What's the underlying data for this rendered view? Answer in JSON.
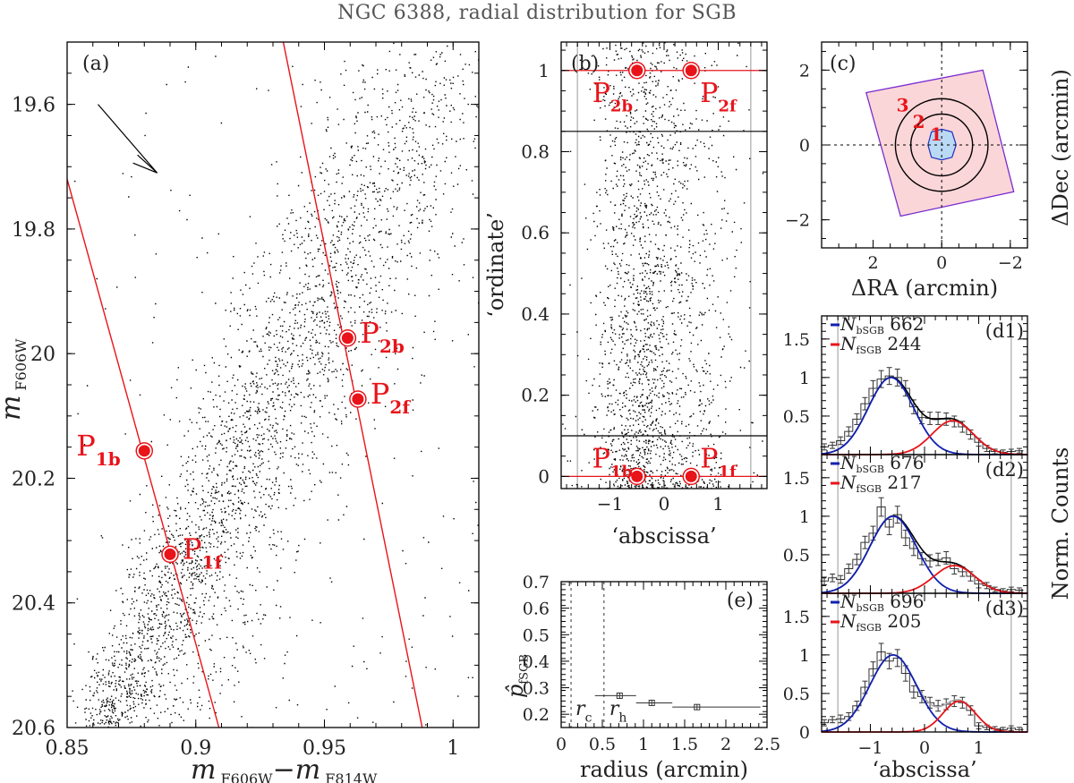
{
  "title": "NGC 6388, radial distribution for SGB",
  "colors": {
    "red": "#e8141a",
    "blue": "#1020b0",
    "black": "#000000",
    "grey": "#b0b0b0",
    "footprint_fill": "#fbd6d8",
    "footprint_edge": "#7a2bd0",
    "core_fill": "#b9d9f5",
    "core_edge": "#2030c0"
  },
  "chart_data": [
    {
      "panel": "a",
      "type": "scatter",
      "label": "(a)",
      "xlabel_main": "m",
      "xlabel_sub1": "F606W",
      "xlabel_mid": "−m",
      "xlabel_sub2": "F814W",
      "ylabel_main": "m",
      "ylabel_sub": "F606W",
      "xlim": [
        0.85,
        1.01
      ],
      "ylim": [
        20.6,
        19.5
      ],
      "x_ticks": [
        "0.85",
        "0.9",
        "0.95",
        "1"
      ],
      "x_tick_values": [
        0.85,
        0.9,
        0.95,
        1.0
      ],
      "y_ticks": [
        "19.6",
        "19.8",
        "20",
        "20.2",
        "20.4",
        "20.6"
      ],
      "y_tick_values": [
        19.6,
        19.8,
        20.0,
        20.2,
        20.4,
        20.6
      ],
      "lines": [
        {
          "name": "line-1",
          "x": [
            0.85,
            0.909
          ],
          "y": [
            19.72,
            20.6
          ]
        },
        {
          "name": "line-2",
          "x": [
            0.934,
            0.988
          ],
          "y": [
            19.5,
            20.6
          ]
        }
      ],
      "points": [
        {
          "label": "P",
          "sub": "1b",
          "x": 0.88,
          "y": 20.156
        },
        {
          "label": "P",
          "sub": "1f",
          "x": 0.89,
          "y": 20.322
        },
        {
          "label": "P",
          "sub": "2b",
          "x": 0.959,
          "y": 19.975
        },
        {
          "label": "P",
          "sub": "2f",
          "x": 0.963,
          "y": 20.073
        }
      ],
      "reddening_arrow": {
        "from": [
          0.862,
          19.6
        ],
        "to": [
          0.885,
          19.71
        ]
      },
      "stars": "dense CMD of SGB: blue (bright) SGB sequence near color 0.86-0.88 at faint mags, spreading to 0.9-1.0 at brighter mags"
    },
    {
      "panel": "b",
      "type": "scatter",
      "label": "(b)",
      "xlabel": "‘abscissa’",
      "ylabel": "‘ordinate’",
      "xlim": [
        -1.9,
        1.9
      ],
      "ylim": [
        -0.03,
        1.07
      ],
      "x_ticks": [
        "−1",
        "0",
        "1"
      ],
      "x_tick_values": [
        -1,
        0,
        1
      ],
      "y_ticks": [
        "0",
        "0.2",
        "0.4",
        "0.6",
        "0.8",
        "1"
      ],
      "y_tick_values": [
        0,
        0.2,
        0.4,
        0.6,
        0.8,
        1
      ],
      "hlines_red": [
        0,
        1
      ],
      "hlines_black": [
        0.1,
        0.85
      ],
      "vlines_grey": [
        -1.6,
        1.6
      ],
      "points": [
        {
          "label": "P",
          "sub": "1b",
          "x": -0.5,
          "y": 0
        },
        {
          "label": "P",
          "sub": "1f",
          "x": 0.5,
          "y": 0
        },
        {
          "label": "P",
          "sub": "2b",
          "x": -0.5,
          "y": 1
        },
        {
          "label": "P",
          "sub": "2f",
          "x": 0.5,
          "y": 1
        }
      ]
    },
    {
      "panel": "c",
      "type": "diagram",
      "label": "(c)",
      "xlabel": "ΔRA (arcmin)",
      "ylabel": "ΔDec (arcmin)",
      "xlim": [
        3.5,
        -2.5
      ],
      "ylim": [
        -2.75,
        2.75
      ],
      "x_ticks": [
        "2",
        "0",
        "−2"
      ],
      "x_tick_values": [
        2,
        0,
        -2
      ],
      "y_ticks": [
        "−2",
        "0",
        "2"
      ],
      "y_tick_values": [
        -2,
        0,
        2
      ],
      "footprint": [
        [
          2.2,
          1.4
        ],
        [
          -1.2,
          2.0
        ],
        [
          -2.1,
          -1.25
        ],
        [
          1.2,
          -1.9
        ]
      ],
      "annuli_radii": [
        0.4,
        0.9,
        1.35
      ],
      "region_labels": [
        "1",
        "2",
        "3"
      ]
    },
    {
      "panel": "d1",
      "type": "histogram",
      "label": "(d1)",
      "ylabel": "Norm. Counts",
      "xlim": [
        -1.9,
        1.9
      ],
      "ylim": [
        0,
        1.8
      ],
      "y_ticks": [
        "0.5",
        "1",
        "1.5"
      ],
      "y_tick_values": [
        0.5,
        1.0,
        1.5
      ],
      "legend": [
        {
          "symbol": "N",
          "sub": "bSGB",
          "value": "662",
          "color": "blue"
        },
        {
          "symbol": "N",
          "sub": "fSGB",
          "value": "244",
          "color": "red"
        }
      ],
      "gauss_b": {
        "mu": -0.62,
        "sigma": 0.42,
        "amp": 1.0
      },
      "gauss_f": {
        "mu": 0.52,
        "sigma": 0.38,
        "amp": 0.44
      },
      "bins_x": [
        -1.85,
        -1.7,
        -1.55,
        -1.4,
        -1.25,
        -1.1,
        -0.95,
        -0.8,
        -0.65,
        -0.5,
        -0.35,
        -0.2,
        -0.05,
        0.1,
        0.25,
        0.4,
        0.55,
        0.7,
        0.85,
        1.0,
        1.15,
        1.3,
        1.45,
        1.6,
        1.75
      ],
      "bins_y": [
        0.1,
        0.12,
        0.18,
        0.3,
        0.46,
        0.66,
        0.86,
        0.98,
        1.02,
        1.0,
        0.86,
        0.62,
        0.48,
        0.47,
        0.47,
        0.46,
        0.43,
        0.36,
        0.26,
        0.16,
        0.08,
        0.04,
        0.03,
        0.04,
        0.05
      ],
      "bins_err": [
        0.04,
        0.04,
        0.05,
        0.06,
        0.07,
        0.08,
        0.1,
        0.11,
        0.11,
        0.11,
        0.1,
        0.09,
        0.08,
        0.08,
        0.08,
        0.08,
        0.07,
        0.07,
        0.06,
        0.05,
        0.04,
        0.03,
        0.03,
        0.03,
        0.03
      ]
    },
    {
      "panel": "d2",
      "type": "histogram",
      "label": "(d2)",
      "xlim": [
        -1.9,
        1.9
      ],
      "ylim": [
        0,
        1.8
      ],
      "y_ticks": [
        "0.5",
        "1",
        "1.5"
      ],
      "y_tick_values": [
        0.5,
        1.0,
        1.5
      ],
      "legend": [
        {
          "symbol": "N",
          "sub": "bSGB",
          "value": "676",
          "color": "blue"
        },
        {
          "symbol": "N",
          "sub": "fSGB",
          "value": "217",
          "color": "red"
        }
      ],
      "gauss_b": {
        "mu": -0.58,
        "sigma": 0.43,
        "amp": 1.0
      },
      "gauss_f": {
        "mu": 0.55,
        "sigma": 0.38,
        "amp": 0.36
      },
      "bins_x": [
        -1.85,
        -1.7,
        -1.55,
        -1.4,
        -1.25,
        -1.1,
        -0.95,
        -0.8,
        -0.65,
        -0.5,
        -0.35,
        -0.2,
        -0.05,
        0.1,
        0.25,
        0.4,
        0.55,
        0.7,
        0.85,
        1.0,
        1.15,
        1.3,
        1.45,
        1.6,
        1.75
      ],
      "bins_y": [
        0.16,
        0.2,
        0.18,
        0.32,
        0.44,
        0.66,
        0.78,
        1.12,
        0.86,
        1.02,
        0.72,
        0.58,
        0.45,
        0.42,
        0.44,
        0.46,
        0.32,
        0.28,
        0.22,
        0.12,
        0.1,
        0.05,
        0.03,
        0.05,
        0.04
      ],
      "bins_err": [
        0.05,
        0.05,
        0.05,
        0.06,
        0.07,
        0.08,
        0.09,
        0.12,
        0.1,
        0.11,
        0.1,
        0.09,
        0.08,
        0.08,
        0.08,
        0.08,
        0.07,
        0.06,
        0.06,
        0.05,
        0.04,
        0.03,
        0.03,
        0.03,
        0.03
      ]
    },
    {
      "panel": "d3",
      "type": "histogram",
      "label": "(d3)",
      "xlabel": "‘abscissa’",
      "xlim": [
        -1.9,
        1.9
      ],
      "ylim": [
        0,
        1.8
      ],
      "x_ticks": [
        "−1",
        "0",
        "1"
      ],
      "x_tick_values": [
        -1,
        0,
        1
      ],
      "y_ticks": [
        "0",
        "0.5",
        "1",
        "1.5"
      ],
      "y_tick_values": [
        0,
        0.5,
        1.0,
        1.5
      ],
      "legend": [
        {
          "symbol": "N",
          "sub": "bSGB",
          "value": "696",
          "color": "blue"
        },
        {
          "symbol": "N",
          "sub": "fSGB",
          "value": "205",
          "color": "red"
        }
      ],
      "gauss_b": {
        "mu": -0.58,
        "sigma": 0.43,
        "amp": 1.0
      },
      "gauss_f": {
        "mu": 0.64,
        "sigma": 0.3,
        "amp": 0.4
      },
      "bins_x": [
        -1.85,
        -1.7,
        -1.55,
        -1.4,
        -1.25,
        -1.1,
        -0.95,
        -0.8,
        -0.65,
        -0.5,
        -0.35,
        -0.2,
        -0.05,
        0.1,
        0.25,
        0.4,
        0.55,
        0.7,
        0.85,
        1.0,
        1.15,
        1.3,
        1.45,
        1.6,
        1.75
      ],
      "bins_y": [
        0.12,
        0.16,
        0.17,
        0.2,
        0.34,
        0.58,
        0.82,
        1.04,
        0.92,
        0.96,
        0.76,
        0.52,
        0.46,
        0.38,
        0.34,
        0.36,
        0.4,
        0.38,
        0.28,
        0.08,
        0.06,
        0.04,
        0.03,
        0.05,
        0.03
      ],
      "bins_err": [
        0.04,
        0.04,
        0.05,
        0.05,
        0.06,
        0.08,
        0.09,
        0.11,
        0.1,
        0.11,
        0.1,
        0.08,
        0.08,
        0.07,
        0.07,
        0.07,
        0.07,
        0.07,
        0.06,
        0.04,
        0.03,
        0.03,
        0.03,
        0.03,
        0.03
      ]
    },
    {
      "panel": "e",
      "type": "scatter",
      "label": "(e)",
      "xlabel": "radius (arcmin)",
      "ylabel_main": "p̂",
      "ylabel_sub": "fSGB",
      "xlim": [
        0,
        2.5
      ],
      "ylim": [
        0.15,
        0.7
      ],
      "x_ticks": [
        "0",
        "0.5",
        "1",
        "1.5",
        "2",
        "2.5"
      ],
      "x_tick_values": [
        0,
        0.5,
        1,
        1.5,
        2,
        2.5
      ],
      "y_ticks": [
        "0.2",
        "0.3",
        "0.4",
        "0.5",
        "0.6",
        "0.7"
      ],
      "y_tick_values": [
        0.2,
        0.3,
        0.4,
        0.5,
        0.6,
        0.7
      ],
      "r_c": 0.12,
      "r_h": 0.52,
      "r_c_label": "r",
      "r_c_sub": "c",
      "r_h_label": "r",
      "r_h_sub": "h",
      "points": [
        {
          "x": 0.71,
          "y": 0.27,
          "xmin": 0.41,
          "xmax": 0.91,
          "yerr": 0.012
        },
        {
          "x": 1.1,
          "y": 0.243,
          "xmin": 0.91,
          "xmax": 1.35,
          "yerr": 0.01
        },
        {
          "x": 1.65,
          "y": 0.227,
          "xmin": 1.35,
          "xmax": 2.42,
          "yerr": 0.01
        }
      ]
    }
  ]
}
